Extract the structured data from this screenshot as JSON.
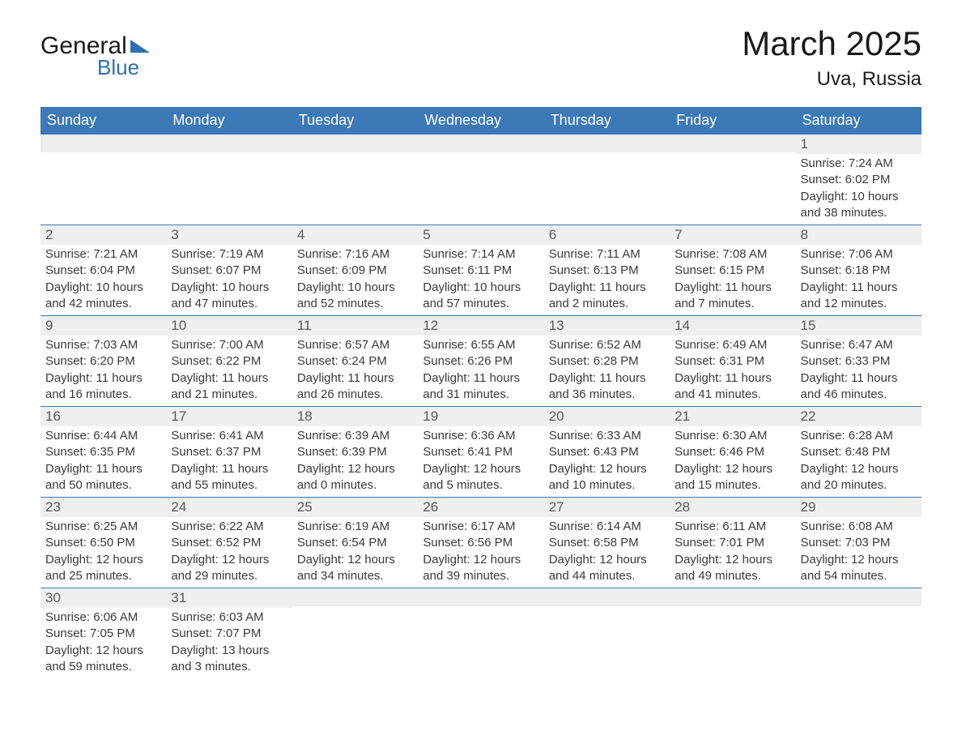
{
  "brand": {
    "word1": "General",
    "word2": "Blue",
    "accent_color": "#2f6fb0"
  },
  "title": "March 2025",
  "location": "Uva, Russia",
  "header_bg": "#3b79b7",
  "header_fg": "#ffffff",
  "daynum_bg": "#efefef",
  "daynum_fg": "#595959",
  "border_color": "#3b79b7",
  "body_fg": "#3a3a3a",
  "title_fontsize": 42,
  "location_fontsize": 24,
  "dow_fontsize": 18,
  "cell_fontsize": 15,
  "days_of_week": [
    "Sunday",
    "Monday",
    "Tuesday",
    "Wednesday",
    "Thursday",
    "Friday",
    "Saturday"
  ],
  "weeks": [
    [
      {
        "n": "",
        "sr": "",
        "ss": "",
        "dl": ""
      },
      {
        "n": "",
        "sr": "",
        "ss": "",
        "dl": ""
      },
      {
        "n": "",
        "sr": "",
        "ss": "",
        "dl": ""
      },
      {
        "n": "",
        "sr": "",
        "ss": "",
        "dl": ""
      },
      {
        "n": "",
        "sr": "",
        "ss": "",
        "dl": ""
      },
      {
        "n": "",
        "sr": "",
        "ss": "",
        "dl": ""
      },
      {
        "n": "1",
        "sr": "Sunrise: 7:24 AM",
        "ss": "Sunset: 6:02 PM",
        "dl": "Daylight: 10 hours and 38 minutes."
      }
    ],
    [
      {
        "n": "2",
        "sr": "Sunrise: 7:21 AM",
        "ss": "Sunset: 6:04 PM",
        "dl": "Daylight: 10 hours and 42 minutes."
      },
      {
        "n": "3",
        "sr": "Sunrise: 7:19 AM",
        "ss": "Sunset: 6:07 PM",
        "dl": "Daylight: 10 hours and 47 minutes."
      },
      {
        "n": "4",
        "sr": "Sunrise: 7:16 AM",
        "ss": "Sunset: 6:09 PM",
        "dl": "Daylight: 10 hours and 52 minutes."
      },
      {
        "n": "5",
        "sr": "Sunrise: 7:14 AM",
        "ss": "Sunset: 6:11 PM",
        "dl": "Daylight: 10 hours and 57 minutes."
      },
      {
        "n": "6",
        "sr": "Sunrise: 7:11 AM",
        "ss": "Sunset: 6:13 PM",
        "dl": "Daylight: 11 hours and 2 minutes."
      },
      {
        "n": "7",
        "sr": "Sunrise: 7:08 AM",
        "ss": "Sunset: 6:15 PM",
        "dl": "Daylight: 11 hours and 7 minutes."
      },
      {
        "n": "8",
        "sr": "Sunrise: 7:06 AM",
        "ss": "Sunset: 6:18 PM",
        "dl": "Daylight: 11 hours and 12 minutes."
      }
    ],
    [
      {
        "n": "9",
        "sr": "Sunrise: 7:03 AM",
        "ss": "Sunset: 6:20 PM",
        "dl": "Daylight: 11 hours and 16 minutes."
      },
      {
        "n": "10",
        "sr": "Sunrise: 7:00 AM",
        "ss": "Sunset: 6:22 PM",
        "dl": "Daylight: 11 hours and 21 minutes."
      },
      {
        "n": "11",
        "sr": "Sunrise: 6:57 AM",
        "ss": "Sunset: 6:24 PM",
        "dl": "Daylight: 11 hours and 26 minutes."
      },
      {
        "n": "12",
        "sr": "Sunrise: 6:55 AM",
        "ss": "Sunset: 6:26 PM",
        "dl": "Daylight: 11 hours and 31 minutes."
      },
      {
        "n": "13",
        "sr": "Sunrise: 6:52 AM",
        "ss": "Sunset: 6:28 PM",
        "dl": "Daylight: 11 hours and 36 minutes."
      },
      {
        "n": "14",
        "sr": "Sunrise: 6:49 AM",
        "ss": "Sunset: 6:31 PM",
        "dl": "Daylight: 11 hours and 41 minutes."
      },
      {
        "n": "15",
        "sr": "Sunrise: 6:47 AM",
        "ss": "Sunset: 6:33 PM",
        "dl": "Daylight: 11 hours and 46 minutes."
      }
    ],
    [
      {
        "n": "16",
        "sr": "Sunrise: 6:44 AM",
        "ss": "Sunset: 6:35 PM",
        "dl": "Daylight: 11 hours and 50 minutes."
      },
      {
        "n": "17",
        "sr": "Sunrise: 6:41 AM",
        "ss": "Sunset: 6:37 PM",
        "dl": "Daylight: 11 hours and 55 minutes."
      },
      {
        "n": "18",
        "sr": "Sunrise: 6:39 AM",
        "ss": "Sunset: 6:39 PM",
        "dl": "Daylight: 12 hours and 0 minutes."
      },
      {
        "n": "19",
        "sr": "Sunrise: 6:36 AM",
        "ss": "Sunset: 6:41 PM",
        "dl": "Daylight: 12 hours and 5 minutes."
      },
      {
        "n": "20",
        "sr": "Sunrise: 6:33 AM",
        "ss": "Sunset: 6:43 PM",
        "dl": "Daylight: 12 hours and 10 minutes."
      },
      {
        "n": "21",
        "sr": "Sunrise: 6:30 AM",
        "ss": "Sunset: 6:46 PM",
        "dl": "Daylight: 12 hours and 15 minutes."
      },
      {
        "n": "22",
        "sr": "Sunrise: 6:28 AM",
        "ss": "Sunset: 6:48 PM",
        "dl": "Daylight: 12 hours and 20 minutes."
      }
    ],
    [
      {
        "n": "23",
        "sr": "Sunrise: 6:25 AM",
        "ss": "Sunset: 6:50 PM",
        "dl": "Daylight: 12 hours and 25 minutes."
      },
      {
        "n": "24",
        "sr": "Sunrise: 6:22 AM",
        "ss": "Sunset: 6:52 PM",
        "dl": "Daylight: 12 hours and 29 minutes."
      },
      {
        "n": "25",
        "sr": "Sunrise: 6:19 AM",
        "ss": "Sunset: 6:54 PM",
        "dl": "Daylight: 12 hours and 34 minutes."
      },
      {
        "n": "26",
        "sr": "Sunrise: 6:17 AM",
        "ss": "Sunset: 6:56 PM",
        "dl": "Daylight: 12 hours and 39 minutes."
      },
      {
        "n": "27",
        "sr": "Sunrise: 6:14 AM",
        "ss": "Sunset: 6:58 PM",
        "dl": "Daylight: 12 hours and 44 minutes."
      },
      {
        "n": "28",
        "sr": "Sunrise: 6:11 AM",
        "ss": "Sunset: 7:01 PM",
        "dl": "Daylight: 12 hours and 49 minutes."
      },
      {
        "n": "29",
        "sr": "Sunrise: 6:08 AM",
        "ss": "Sunset: 7:03 PM",
        "dl": "Daylight: 12 hours and 54 minutes."
      }
    ],
    [
      {
        "n": "30",
        "sr": "Sunrise: 6:06 AM",
        "ss": "Sunset: 7:05 PM",
        "dl": "Daylight: 12 hours and 59 minutes."
      },
      {
        "n": "31",
        "sr": "Sunrise: 6:03 AM",
        "ss": "Sunset: 7:07 PM",
        "dl": "Daylight: 13 hours and 3 minutes."
      },
      {
        "n": "",
        "sr": "",
        "ss": "",
        "dl": ""
      },
      {
        "n": "",
        "sr": "",
        "ss": "",
        "dl": ""
      },
      {
        "n": "",
        "sr": "",
        "ss": "",
        "dl": ""
      },
      {
        "n": "",
        "sr": "",
        "ss": "",
        "dl": ""
      },
      {
        "n": "",
        "sr": "",
        "ss": "",
        "dl": ""
      }
    ]
  ]
}
